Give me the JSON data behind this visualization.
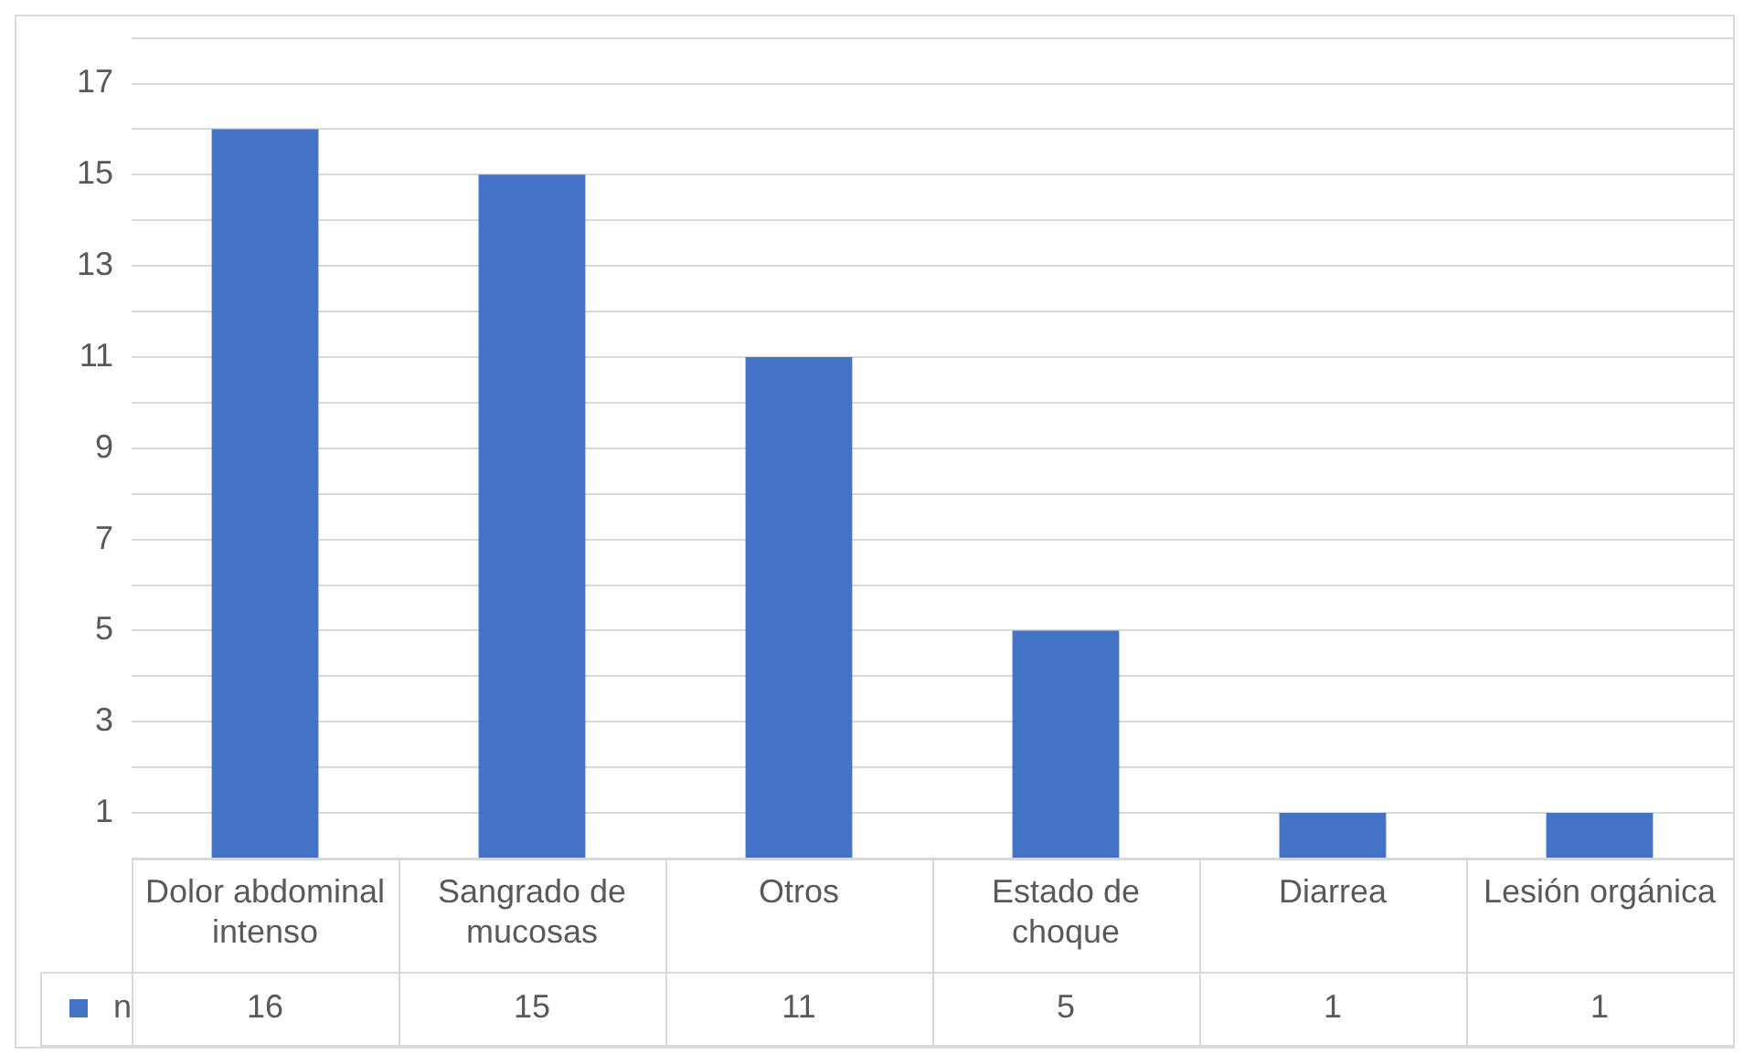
{
  "chart_data": {
    "type": "bar",
    "categories": [
      "Dolor abdominal intenso",
      "Sangrado de mucosas",
      "Otros",
      "Estado de choque",
      "Diarrea",
      "Lesión orgánica"
    ],
    "series": [
      {
        "name": "n",
        "color": "#4472c4",
        "values": [
          16,
          15,
          11,
          5,
          1,
          1
        ]
      }
    ],
    "ylim": [
      0,
      18
    ],
    "yticks": [
      {
        "value": 0,
        "label": null
      },
      1,
      {
        "value": 2,
        "label": null
      },
      3,
      {
        "value": 4,
        "label": null
      },
      5,
      {
        "value": 6,
        "label": null
      },
      7,
      {
        "value": 8,
        "label": null
      },
      9,
      {
        "value": 10,
        "label": null
      },
      11,
      {
        "value": 12,
        "label": null
      },
      13,
      {
        "value": 14,
        "label": null
      },
      15,
      {
        "value": 16,
        "label": null
      },
      17,
      {
        "value": 18,
        "label": null
      }
    ],
    "grid": "y",
    "legend": "bottom",
    "data_labels": true
  }
}
